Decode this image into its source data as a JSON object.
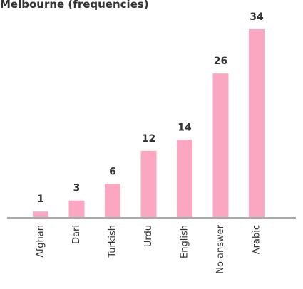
{
  "chart_data": {
    "type": "bar",
    "title": "Melbourne (frequencies)",
    "categories": [
      "Afghan",
      "Dari",
      "Turkish",
      "Urdu",
      "English",
      "No answer",
      "Arabic"
    ],
    "values": [
      1,
      3,
      6,
      12,
      14,
      26,
      34
    ],
    "color": "#fba7c1"
  }
}
